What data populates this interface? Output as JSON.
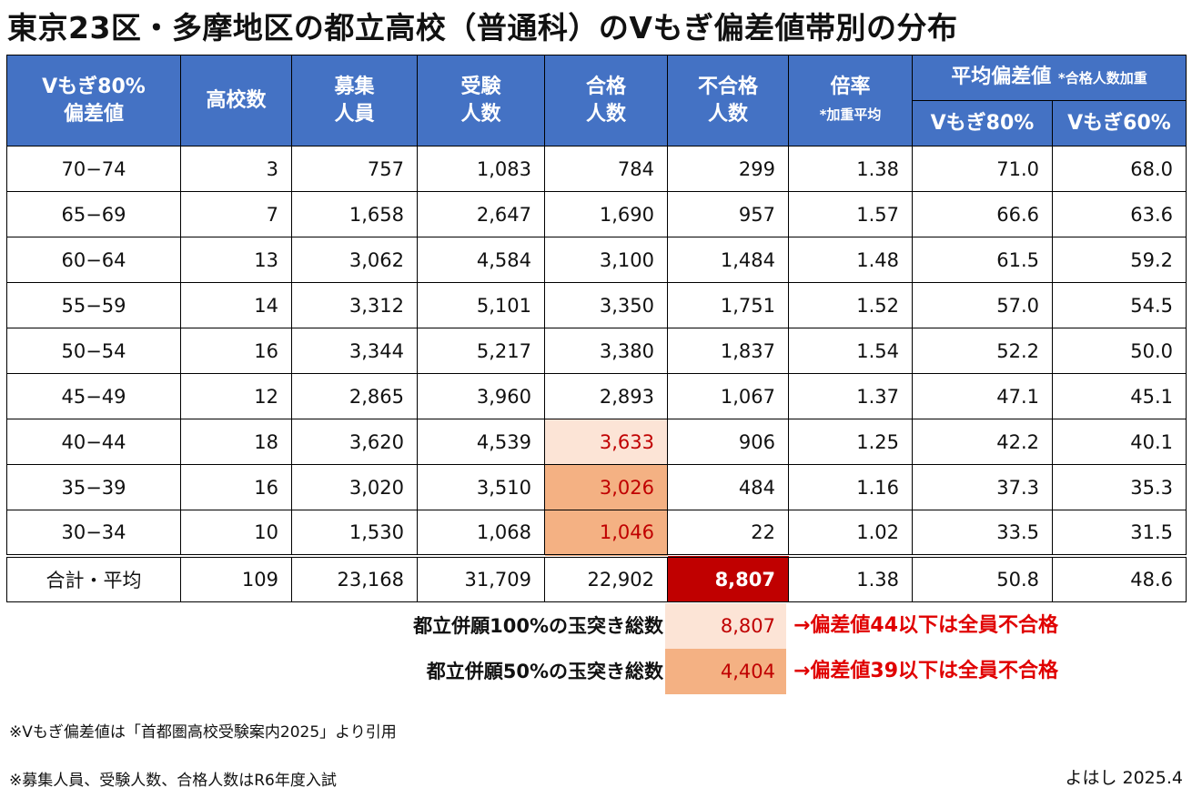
{
  "title": "東京23区・多摩地区の都立高校（普通科）のVもぎ偏差値帯別の分布",
  "header": {
    "band_line1": "Vもぎ80%",
    "band_line2": "偏差値",
    "schools": "高校数",
    "capacity_line1": "募集",
    "capacity_line2": "人員",
    "applicants_line1": "受験",
    "applicants_line2": "人数",
    "passed_line1": "合格",
    "passed_line2": "人数",
    "failed_line1": "不合格",
    "failed_line2": "人数",
    "ratio_line1": "倍率",
    "ratio_line2": "*加重平均",
    "avg_title": "平均偏差値",
    "avg_note": "*合格人数加重",
    "avg_v80": "Vもぎ80%",
    "avg_v60": "Vもぎ60%"
  },
  "rows": [
    {
      "band": "70−74",
      "schools": "3",
      "capacity": "757",
      "applicants": "1,083",
      "passed": "784",
      "failed": "299",
      "ratio": "1.38",
      "v80": "71.0",
      "v60": "68.0"
    },
    {
      "band": "65−69",
      "schools": "7",
      "capacity": "1,658",
      "applicants": "2,647",
      "passed": "1,690",
      "failed": "957",
      "ratio": "1.57",
      "v80": "66.6",
      "v60": "63.6"
    },
    {
      "band": "60−64",
      "schools": "13",
      "capacity": "3,062",
      "applicants": "4,584",
      "passed": "3,100",
      "failed": "1,484",
      "ratio": "1.48",
      "v80": "61.5",
      "v60": "59.2"
    },
    {
      "band": "55−59",
      "schools": "14",
      "capacity": "3,312",
      "applicants": "5,101",
      "passed": "3,350",
      "failed": "1,751",
      "ratio": "1.52",
      "v80": "57.0",
      "v60": "54.5"
    },
    {
      "band": "50−54",
      "schools": "16",
      "capacity": "3,344",
      "applicants": "5,217",
      "passed": "3,380",
      "failed": "1,837",
      "ratio": "1.54",
      "v80": "52.2",
      "v60": "50.0"
    },
    {
      "band": "45−49",
      "schools": "12",
      "capacity": "2,865",
      "applicants": "3,960",
      "passed": "2,893",
      "failed": "1,067",
      "ratio": "1.37",
      "v80": "47.1",
      "v60": "45.1"
    },
    {
      "band": "40−44",
      "schools": "18",
      "capacity": "3,620",
      "applicants": "4,539",
      "passed": "3,633",
      "failed": "906",
      "ratio": "1.25",
      "v80": "42.2",
      "v60": "40.1"
    },
    {
      "band": "35−39",
      "schools": "16",
      "capacity": "3,020",
      "applicants": "3,510",
      "passed": "3,026",
      "failed": "484",
      "ratio": "1.16",
      "v80": "37.3",
      "v60": "35.3"
    },
    {
      "band": "30−34",
      "schools": "10",
      "capacity": "1,530",
      "applicants": "1,068",
      "passed": "1,046",
      "failed": "22",
      "ratio": "1.02",
      "v80": "33.5",
      "v60": "31.5"
    }
  ],
  "total": {
    "band": "合計・平均",
    "schools": "109",
    "capacity": "23,168",
    "applicants": "31,709",
    "passed": "22,902",
    "failed": "8,807",
    "ratio": "1.38",
    "v80": "50.8",
    "v60": "48.6"
  },
  "summary": [
    {
      "label": "都立併願100%の玉突き総数",
      "value": "8,807",
      "note": "→偏差値44以下は全員不合格"
    },
    {
      "label": "都立併願50%の玉突き総数",
      "value": "4,404",
      "note": "→偏差値39以下は全員不合格"
    }
  ],
  "notes": [
    "※Vもぎ偏差値は「首都圏高校受験案内2025」より引用",
    "※募集人員、受験人数、合格人数はR6年度入試"
  ],
  "author": "よはし 2025.4",
  "colors": {
    "header_bg": "#4472c4",
    "highlight_light": "#fce4d6",
    "highlight_mid": "#f4b183",
    "highlight_dark": "#c00000",
    "note_red": "#e00000"
  }
}
